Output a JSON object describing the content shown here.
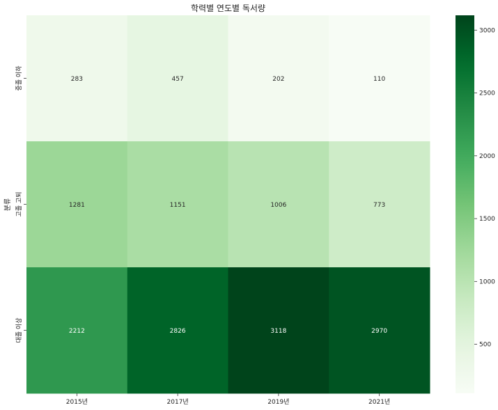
{
  "chart_data": {
    "type": "heatmap",
    "title": "학력별 연도별 독서량",
    "xlabel": "",
    "ylabel": "분류",
    "x_categories": [
      "2015년",
      "2017년",
      "2019년",
      "2021년"
    ],
    "y_categories": [
      "중졸 이하",
      "고졸 고퇴",
      "대졸 이상"
    ],
    "values": [
      [
        283,
        457,
        202,
        110
      ],
      [
        1281,
        1151,
        1006,
        773
      ],
      [
        2212,
        2826,
        3118,
        2970
      ]
    ],
    "colormap": "Greens",
    "color_range": [
      110,
      3118
    ],
    "colorbar_ticks": [
      500,
      1000,
      1500,
      2000,
      2500,
      3000
    ],
    "colors": {
      "low": "#f7fcf5",
      "high": "#00441b"
    }
  }
}
